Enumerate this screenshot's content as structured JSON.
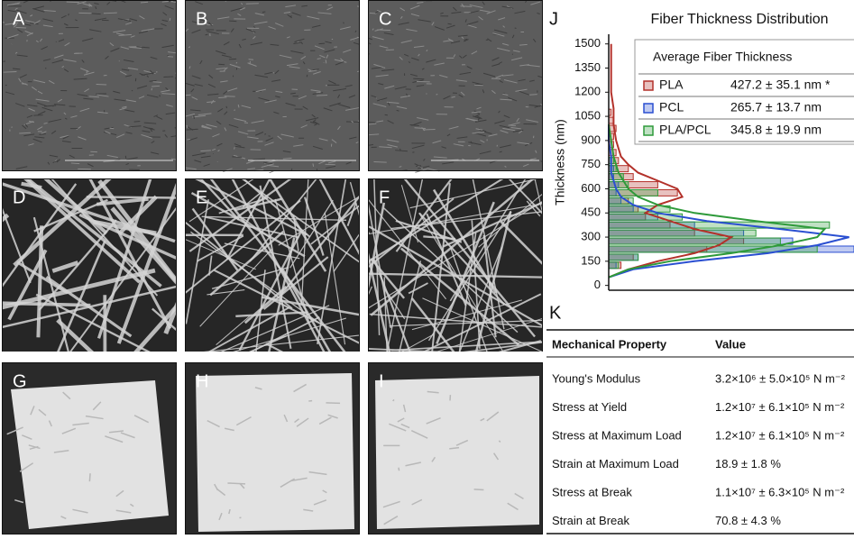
{
  "panels": [
    {
      "label": "A"
    },
    {
      "label": "B"
    },
    {
      "label": "C"
    },
    {
      "label": "D"
    },
    {
      "label": "E"
    },
    {
      "label": "F"
    },
    {
      "label": "G"
    },
    {
      "label": "H"
    },
    {
      "label": "I"
    }
  ],
  "chart_data": {
    "type": "histogram",
    "label": "J",
    "title": "Fiber Thickness Distribution",
    "y_label": "Thickness (nm)",
    "ylim": [
      -30,
      1560
    ],
    "yticks": [
      0,
      150,
      300,
      450,
      600,
      750,
      900,
      1050,
      1200,
      1350,
      1500
    ],
    "xlim": [
      0,
      100
    ],
    "legend_title": "Average Fiber Thickness",
    "series": [
      {
        "name": "PLA",
        "color": "#b3312a",
        "average": "427.2 ± 35.1 nm *",
        "bins": [
          100,
          150,
          200,
          250,
          300,
          350,
          400,
          450,
          500,
          550,
          600,
          650,
          700,
          750,
          800,
          850,
          900,
          950,
          1000,
          1050,
          1100
        ],
        "values": [
          5,
          10,
          40,
          55,
          35,
          25,
          15,
          12,
          8,
          28,
          20,
          10,
          8,
          4,
          3,
          2,
          2,
          3,
          2,
          1
        ],
        "fit_y": [
          50,
          100,
          150,
          200,
          250,
          300,
          350,
          400,
          450,
          500,
          550,
          600,
          650,
          700,
          750,
          800,
          900,
          1000,
          1100,
          1200,
          1300,
          1400,
          1500
        ],
        "fit_values": [
          0,
          8,
          20,
          35,
          45,
          50,
          35,
          25,
          15,
          20,
          30,
          28,
          20,
          12,
          8,
          5,
          3,
          2,
          2,
          1,
          1,
          1,
          1
        ]
      },
      {
        "name": "PCL",
        "color": "#2a4fd1",
        "average": "265.7 ± 13.7 nm",
        "bins": [
          100,
          150,
          200,
          250,
          300,
          350,
          400,
          450,
          500,
          550,
          600,
          650,
          700,
          750,
          800
        ],
        "values": [
          3,
          12,
          100,
          75,
          55,
          35,
          20,
          10,
          5,
          3,
          4,
          2,
          2,
          1
        ],
        "fit_y": [
          50,
          100,
          150,
          200,
          250,
          300,
          350,
          400,
          450,
          500,
          550,
          600,
          700,
          800,
          900,
          1000
        ],
        "fit_values": [
          0,
          10,
          35,
          65,
          85,
          98,
          70,
          40,
          20,
          10,
          5,
          3,
          1,
          1,
          0,
          0
        ]
      },
      {
        "name": "PLA/PCL",
        "color": "#2e9a3a",
        "average": "345.8 ± 19.9 nm",
        "bins": [
          100,
          150,
          200,
          250,
          300,
          350,
          400,
          450,
          500,
          550,
          600,
          650,
          700,
          750,
          800
        ],
        "values": [
          4,
          12,
          85,
          70,
          60,
          90,
          30,
          25,
          10,
          20,
          8,
          6,
          3,
          2
        ],
        "fit_y": [
          50,
          100,
          150,
          200,
          250,
          300,
          350,
          400,
          450,
          500,
          550,
          600,
          700,
          800,
          900,
          1000
        ],
        "fit_values": [
          0,
          8,
          25,
          50,
          70,
          85,
          88,
          60,
          35,
          20,
          12,
          8,
          4,
          2,
          1,
          0
        ]
      }
    ]
  },
  "table": {
    "label": "K",
    "header": [
      "Mechanical Property",
      "Value"
    ],
    "rows": [
      [
        "Young's Modulus",
        "3.2×10⁶ ± 5.0×10⁵ N m⁻²"
      ],
      [
        "Stress at Yield",
        "1.2×10⁷ ± 6.1×10⁵ N m⁻²"
      ],
      [
        "Stress at Maximum Load",
        "1.2×10⁷ ± 6.1×10⁵ N m⁻²"
      ],
      [
        "Strain at Maximum Load",
        "18.9 ± 1.8 %"
      ],
      [
        "Stress at Break",
        "1.1×10⁷ ± 6.3×10⁵ N m⁻²"
      ],
      [
        "Strain at Break",
        "70.8 ± 4.3 %"
      ]
    ]
  }
}
